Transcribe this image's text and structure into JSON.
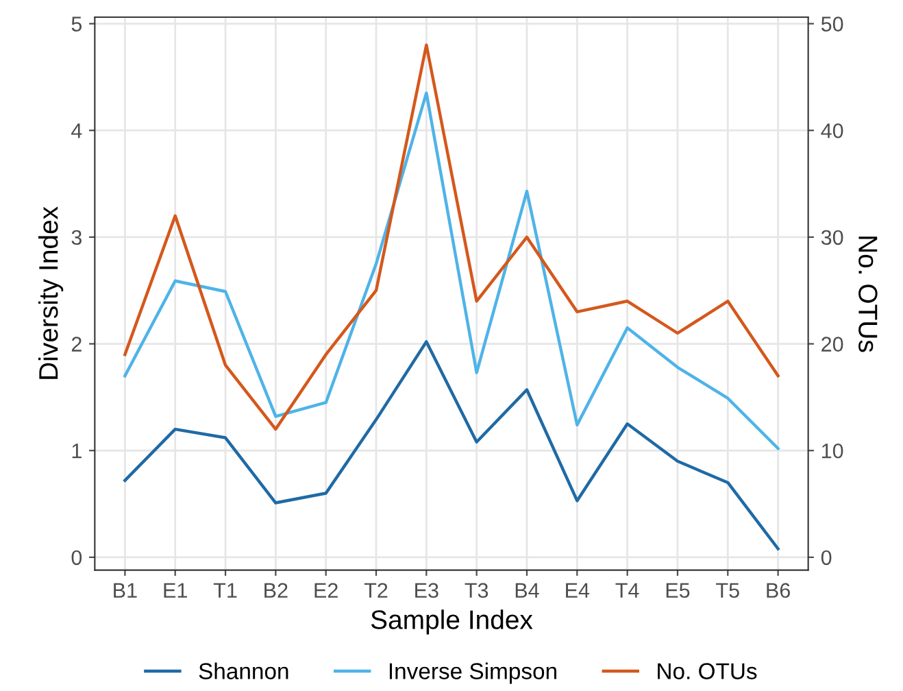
{
  "chart_data": {
    "type": "line",
    "xlabel": "Sample Index",
    "ylabel": "Diversity Index",
    "y2label": "No. OTUs",
    "categories": [
      "B1",
      "E1",
      "T1",
      "B2",
      "E2",
      "T2",
      "E3",
      "T3",
      "B4",
      "E4",
      "T4",
      "E5",
      "T5",
      "B6"
    ],
    "series": [
      {
        "name": "Shannon",
        "color": "#1f6aa5",
        "values": [
          0.72,
          1.2,
          1.12,
          0.51,
          0.6,
          1.29,
          2.02,
          1.08,
          1.57,
          0.53,
          1.25,
          0.9,
          0.7,
          0.08
        ]
      },
      {
        "name": "Inverse Simpson",
        "color": "#4fb3e8",
        "values": [
          1.7,
          2.59,
          2.49,
          1.32,
          1.45,
          2.75,
          4.35,
          1.73,
          3.43,
          1.24,
          2.15,
          1.78,
          1.49,
          1.02
        ]
      },
      {
        "name": "No. OTUs",
        "color": "#d4581c",
        "axis": "y2",
        "values": [
          19,
          32,
          18,
          12,
          19,
          25,
          48,
          24,
          30,
          23,
          24,
          21,
          24,
          17
        ]
      }
    ],
    "ylim": [
      -0.12,
      5.06
    ],
    "yticks": [
      0,
      1,
      2,
      3,
      4,
      5
    ],
    "y2lim": [
      -1.2,
      50.6
    ],
    "y2ticks": [
      0,
      10,
      20,
      30,
      40,
      50
    ],
    "grid": true,
    "legend": "bottom",
    "marker": "none",
    "line_style": "solid"
  }
}
